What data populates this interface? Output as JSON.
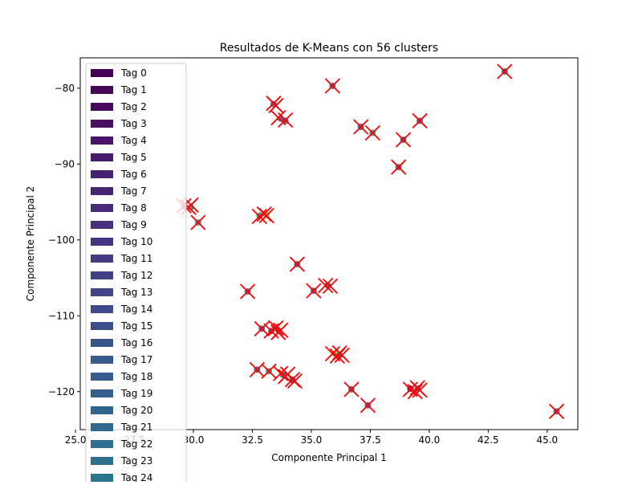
{
  "chart_data": {
    "type": "scatter",
    "title": "Resultados de K-Means con 56 clusters",
    "xlabel": "Componente Principal 1",
    "ylabel": "Componente Principal 2",
    "xlim": [
      25.2,
      46.3
    ],
    "ylim": [
      -125.0,
      -76.0
    ],
    "xticks": [
      25.0,
      27.5,
      30.0,
      32.5,
      35.0,
      37.5,
      40.0,
      42.5,
      45.0
    ],
    "xtick_labels": [
      "25.0",
      "27.5",
      "30.0",
      "32.5",
      "35.0",
      "37.5",
      "40.0",
      "42.5",
      "45.0"
    ],
    "yticks": [
      -120,
      -110,
      -100,
      -90,
      -80
    ],
    "ytick_labels": [
      "−120",
      "−110",
      "−100",
      "−90",
      "−80"
    ],
    "grid": false,
    "legend_position": "upper-left",
    "colormap": "viridis",
    "legend": [
      "Tag 0",
      "Tag 1",
      "Tag 2",
      "Tag 3",
      "Tag 4",
      "Tag 5",
      "Tag 6",
      "Tag 7",
      "Tag 8",
      "Tag 9",
      "Tag 10",
      "Tag 11",
      "Tag 12",
      "Tag 13",
      "Tag 14",
      "Tag 15",
      "Tag 16",
      "Tag 17",
      "Tag 18",
      "Tag 19",
      "Tag 20",
      "Tag 21",
      "Tag 22",
      "Tag 23",
      "Tag 24"
    ],
    "legend_colors": [
      "#440154",
      "#450559",
      "#46085c",
      "#471063",
      "#481467",
      "#481a6c",
      "#482071",
      "#472575",
      "#472a7a",
      "#46307e",
      "#453581",
      "#433a83",
      "#423f85",
      "#404588",
      "#3e4989",
      "#3c4f8a",
      "#3a548c",
      "#38598c",
      "#365c8d",
      "#34608d",
      "#32658e",
      "#30698e",
      "#2e6e8e",
      "#2c718e",
      "#2a768e"
    ],
    "series": [
      {
        "name": "points",
        "marker": "circle",
        "points": [
          {
            "x": 43.2,
            "y": -77.8,
            "c": "#3b528b"
          },
          {
            "x": 35.9,
            "y": -79.7,
            "c": "#3b528b"
          },
          {
            "x": 33.4,
            "y": -82.1,
            "c": "#3b528b"
          },
          {
            "x": 33.7,
            "y": -84.0,
            "c": "#3b528b"
          },
          {
            "x": 33.9,
            "y": -84.3,
            "c": "#3b528b"
          },
          {
            "x": 39.6,
            "y": -84.3,
            "c": "#3b528b"
          },
          {
            "x": 37.1,
            "y": -85.1,
            "c": "#3b528b"
          },
          {
            "x": 37.6,
            "y": -85.9,
            "c": "#21918c"
          },
          {
            "x": 38.9,
            "y": -86.8,
            "c": "#3b528b"
          },
          {
            "x": 38.7,
            "y": -90.4,
            "c": "#3b528b"
          },
          {
            "x": 29.6,
            "y": -95.6,
            "c": "#3b528b"
          },
          {
            "x": 29.9,
            "y": -95.7,
            "c": "#21918c"
          },
          {
            "x": 30.2,
            "y": -97.7,
            "c": "#21918c"
          },
          {
            "x": 32.8,
            "y": -96.8,
            "c": "#21918c"
          },
          {
            "x": 33.1,
            "y": -96.7,
            "c": "#7ad151"
          },
          {
            "x": 34.4,
            "y": -103.2,
            "c": "#3b528b"
          },
          {
            "x": 32.3,
            "y": -106.8,
            "c": "#3b528b"
          },
          {
            "x": 35.1,
            "y": -106.7,
            "c": "#3b528b"
          },
          {
            "x": 35.7,
            "y": -106.0,
            "c": "#3b528b"
          },
          {
            "x": 32.9,
            "y": -111.7,
            "c": "#3b528b"
          },
          {
            "x": 33.3,
            "y": -112.0,
            "c": "#3b528b"
          },
          {
            "x": 33.6,
            "y": -111.9,
            "c": "#3b528b"
          },
          {
            "x": 36.0,
            "y": -115.0,
            "c": "#7ad151"
          },
          {
            "x": 36.2,
            "y": -115.2,
            "c": "#3b528b"
          },
          {
            "x": 32.7,
            "y": -117.1,
            "c": "#3b528b"
          },
          {
            "x": 33.2,
            "y": -117.3,
            "c": "#21918c"
          },
          {
            "x": 33.8,
            "y": -117.8,
            "c": "#3b528b"
          },
          {
            "x": 34.2,
            "y": -118.4,
            "c": "#3b528b"
          },
          {
            "x": 36.7,
            "y": -119.7,
            "c": "#3b528b"
          },
          {
            "x": 39.2,
            "y": -119.6,
            "c": "#440154"
          },
          {
            "x": 39.5,
            "y": -119.6,
            "c": "#3b528b"
          },
          {
            "x": 37.4,
            "y": -121.8,
            "c": "#3b528b"
          },
          {
            "x": 45.4,
            "y": -122.6,
            "c": "#3b528b"
          }
        ]
      },
      {
        "name": "centroids",
        "marker": "x",
        "color": "#ff0000",
        "points": [
          {
            "x": 43.2,
            "y": -77.8
          },
          {
            "x": 35.9,
            "y": -79.7
          },
          {
            "x": 33.4,
            "y": -82.0
          },
          {
            "x": 33.5,
            "y": -82.3
          },
          {
            "x": 33.6,
            "y": -83.9
          },
          {
            "x": 33.9,
            "y": -84.2
          },
          {
            "x": 39.6,
            "y": -84.3
          },
          {
            "x": 37.1,
            "y": -85.1
          },
          {
            "x": 37.6,
            "y": -85.9
          },
          {
            "x": 38.9,
            "y": -86.8
          },
          {
            "x": 38.7,
            "y": -90.4
          },
          {
            "x": 29.6,
            "y": -95.5
          },
          {
            "x": 29.8,
            "y": -95.7
          },
          {
            "x": 29.9,
            "y": -95.4
          },
          {
            "x": 30.2,
            "y": -97.7
          },
          {
            "x": 32.8,
            "y": -96.9
          },
          {
            "x": 33.0,
            "y": -96.6
          },
          {
            "x": 33.1,
            "y": -96.8
          },
          {
            "x": 34.4,
            "y": -103.2
          },
          {
            "x": 32.3,
            "y": -106.8
          },
          {
            "x": 35.1,
            "y": -106.7
          },
          {
            "x": 35.6,
            "y": -106.0
          },
          {
            "x": 35.8,
            "y": -106.1
          },
          {
            "x": 32.9,
            "y": -111.7
          },
          {
            "x": 33.3,
            "y": -112.0
          },
          {
            "x": 33.5,
            "y": -111.6
          },
          {
            "x": 33.6,
            "y": -112.2
          },
          {
            "x": 33.7,
            "y": -111.9
          },
          {
            "x": 35.9,
            "y": -115.0
          },
          {
            "x": 36.1,
            "y": -115.3
          },
          {
            "x": 36.2,
            "y": -114.9
          },
          {
            "x": 36.3,
            "y": -115.2
          },
          {
            "x": 32.7,
            "y": -117.1
          },
          {
            "x": 33.2,
            "y": -117.3
          },
          {
            "x": 33.7,
            "y": -117.6
          },
          {
            "x": 33.9,
            "y": -118.0
          },
          {
            "x": 34.0,
            "y": -117.7
          },
          {
            "x": 34.2,
            "y": -118.4
          },
          {
            "x": 34.3,
            "y": -118.6
          },
          {
            "x": 36.7,
            "y": -119.7
          },
          {
            "x": 39.2,
            "y": -119.7
          },
          {
            "x": 39.4,
            "y": -120.0
          },
          {
            "x": 39.5,
            "y": -119.5
          },
          {
            "x": 39.6,
            "y": -119.8
          },
          {
            "x": 37.4,
            "y": -121.8
          },
          {
            "x": 45.4,
            "y": -122.6
          }
        ]
      }
    ]
  }
}
